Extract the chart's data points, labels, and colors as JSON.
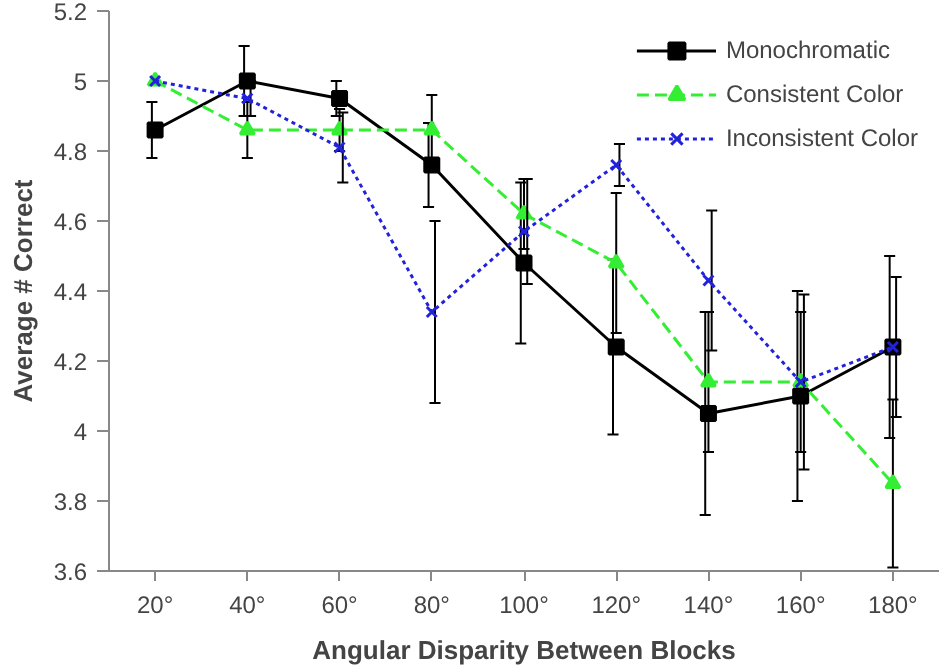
{
  "chart_data": {
    "type": "line",
    "xlabel": "Angular Disparity Between Blocks",
    "ylabel": "Average # Correct",
    "categories": [
      "20°",
      "40°",
      "60°",
      "80°",
      "100°",
      "120°",
      "140°",
      "160°",
      "180°"
    ],
    "series": [
      {
        "name": "Monochromatic",
        "color": "#000000",
        "marker": "square",
        "line_style": "solid",
        "values": [
          4.86,
          5.0,
          4.95,
          4.76,
          4.48,
          4.24,
          4.05,
          4.1,
          4.24
        ],
        "errors": [
          0.08,
          0.1,
          0.05,
          0.12,
          0.23,
          0.25,
          0.29,
          0.3,
          0.26
        ]
      },
      {
        "name": "Consistent Color",
        "color": "#33ee33",
        "marker": "triangle",
        "line_style": "dashed",
        "values": [
          5.0,
          4.86,
          4.86,
          4.86,
          4.62,
          4.48,
          4.14,
          4.14,
          3.85
        ],
        "errors": [
          null,
          0.08,
          0.06,
          0.1,
          0.1,
          0.2,
          0.2,
          0.2,
          0.24
        ]
      },
      {
        "name": "Inconsistent Color",
        "color": "#2222dd",
        "marker": "cross",
        "line_style": "dotted",
        "values": [
          5.0,
          4.95,
          4.81,
          4.34,
          4.57,
          4.76,
          4.43,
          4.14,
          4.24
        ],
        "errors": [
          null,
          0.05,
          0.1,
          0.26,
          0.15,
          0.06,
          0.2,
          0.25,
          0.2
        ]
      }
    ],
    "ylim": [
      3.6,
      5.2
    ],
    "yticks": [
      3.6,
      3.8,
      4,
      4.2,
      4.4,
      4.6,
      4.8,
      5,
      5.2
    ],
    "grid": false,
    "legend": "top right"
  }
}
